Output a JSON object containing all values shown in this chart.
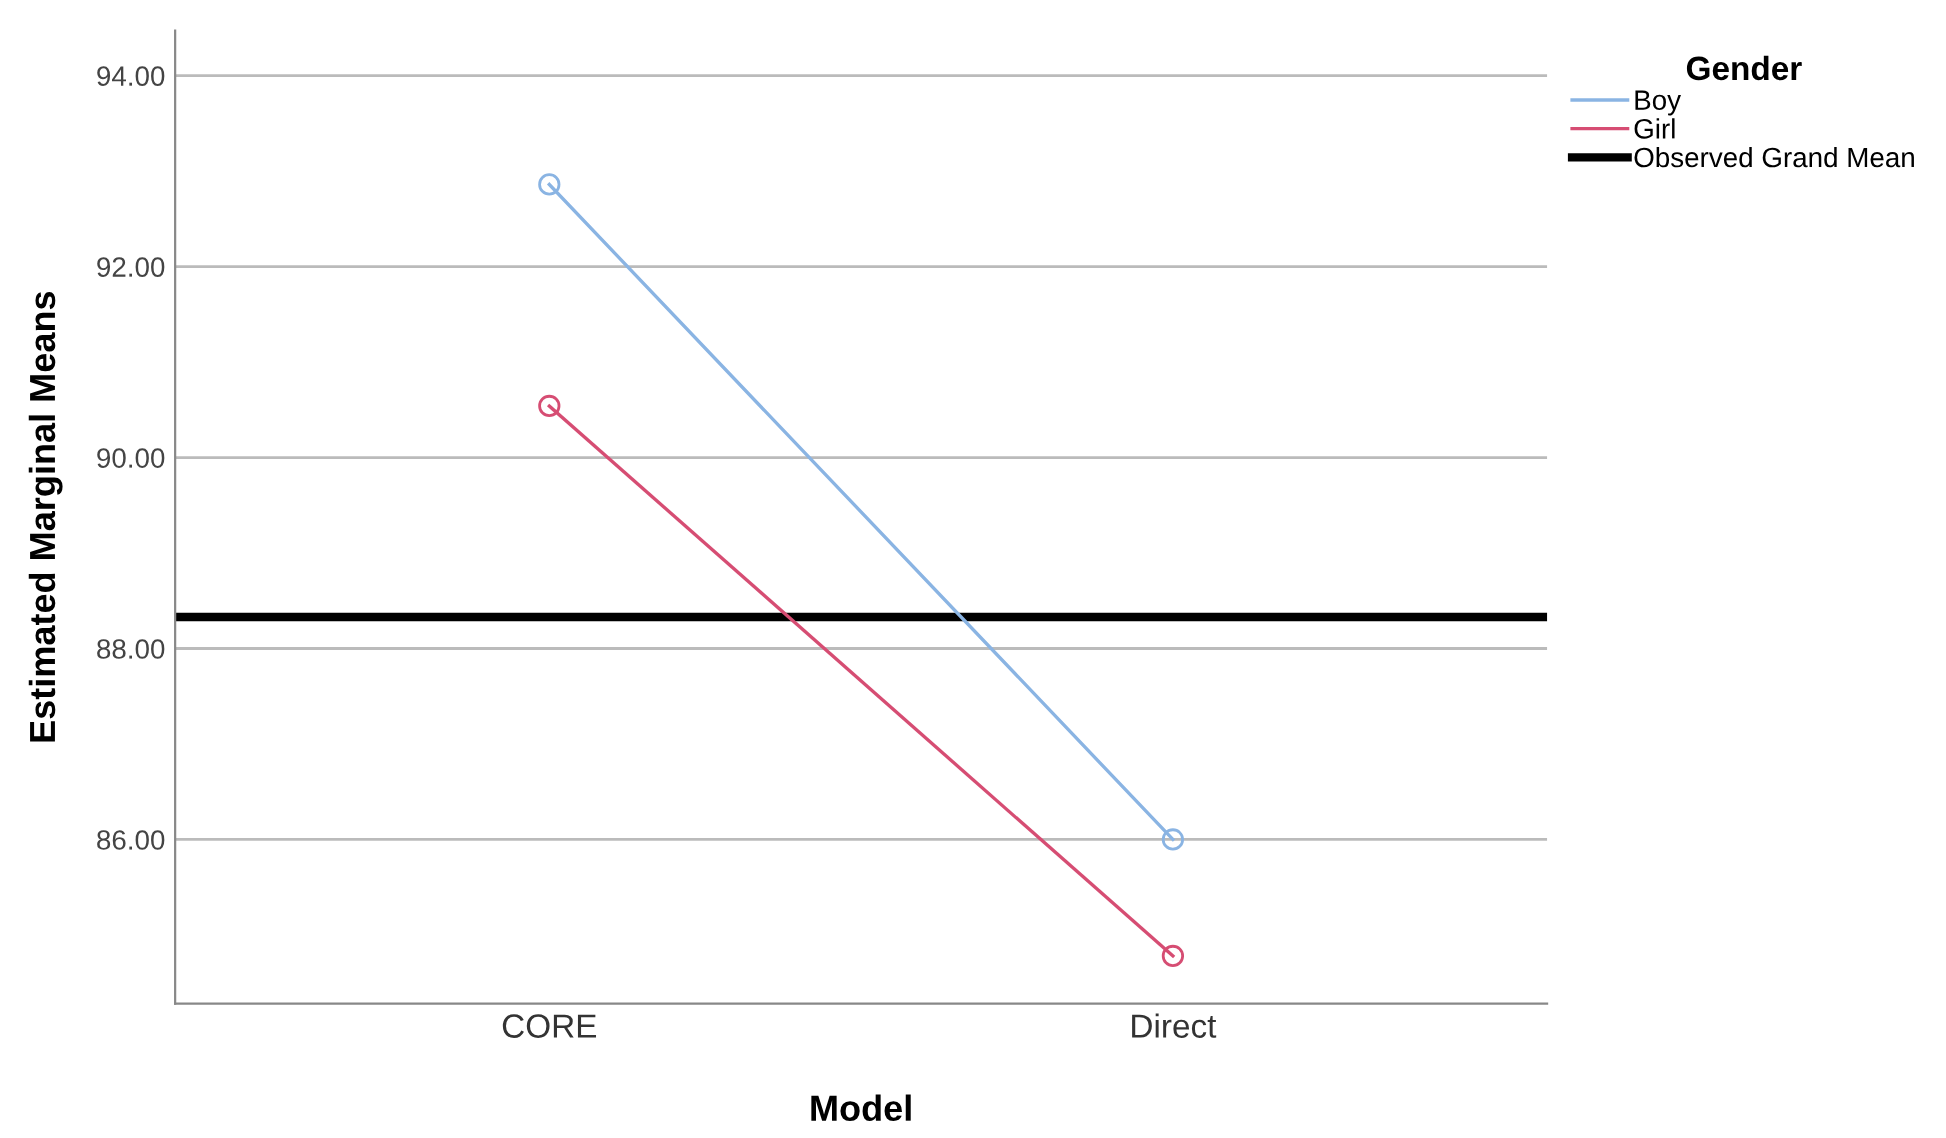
{
  "chart_data": {
    "type": "line",
    "xlabel": "Model",
    "ylabel": "Estimated Marginal Means",
    "legend_title": "Gender",
    "categories": [
      "CORE",
      "Direct"
    ],
    "series": [
      {
        "name": "Boy",
        "color": "#8ab4e3",
        "values": [
          92.86,
          86.0
        ]
      },
      {
        "name": "Girl",
        "color": "#d64d73",
        "values": [
          90.54,
          84.78
        ]
      }
    ],
    "ylim": [
      84.28,
      94.47
    ],
    "yticks": [
      {
        "value": 86,
        "label": "86.00"
      },
      {
        "value": 88,
        "label": "88.00"
      },
      {
        "value": 90,
        "label": "90.00"
      },
      {
        "value": 92,
        "label": "92.00"
      },
      {
        "value": 94,
        "label": "94.00"
      }
    ],
    "ref_lines": [
      {
        "axis": "y",
        "value": 88.33,
        "label": "Observed Grand Mean",
        "color": "#000000"
      }
    ],
    "grid": "y",
    "legend": "top right",
    "marker": "circle",
    "line_style": "solid"
  }
}
